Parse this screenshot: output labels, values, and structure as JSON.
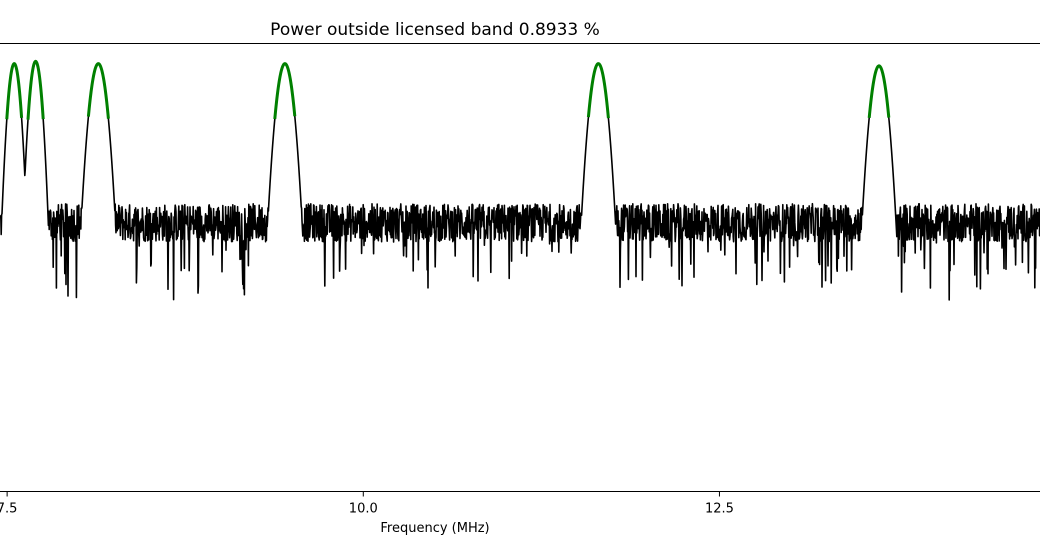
{
  "chart_data": {
    "type": "line",
    "title": "Power outside licensed band 0.8933 %",
    "xlabel": "Frequency (MHz)",
    "ylabel": "",
    "xlim": [
      7.45,
      14.75
    ],
    "ylim": [
      0,
      1
    ],
    "x_ticks": [
      7.5,
      10.0,
      12.5
    ],
    "x_tick_labels": [
      "7.5",
      "10.0",
      "12.5"
    ],
    "grid": false,
    "noise_floor_level": 0.6,
    "series": [
      {
        "role": "spectrum",
        "color": "#000000",
        "peaks": [
          {
            "x": 7.55,
            "y": 0.955,
            "halfwidth": 0.11
          },
          {
            "x": 7.7,
            "y": 0.96,
            "halfwidth": 0.11
          },
          {
            "x": 8.14,
            "y": 0.955,
            "halfwidth": 0.15
          },
          {
            "x": 9.45,
            "y": 0.955,
            "halfwidth": 0.15
          },
          {
            "x": 11.65,
            "y": 0.955,
            "halfwidth": 0.15
          },
          {
            "x": 13.62,
            "y": 0.95,
            "halfwidth": 0.15
          }
        ]
      },
      {
        "role": "licensed-band-highlight",
        "color": "#008000",
        "threshold_y": 0.83
      }
    ]
  }
}
